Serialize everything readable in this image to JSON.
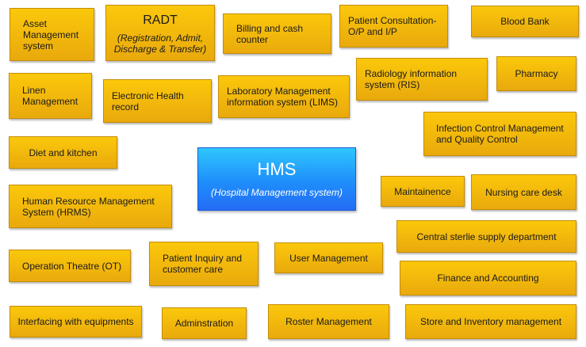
{
  "center": {
    "title": "HMS",
    "subtitle": "(Hospital Management system)"
  },
  "modules": {
    "asset_management": "Asset Management system",
    "radt_title": "RADT",
    "radt_subtitle": "(Registration, Admit, Discharge & Transfer)",
    "billing": "Billing and cash counter",
    "patient_consultation": "Patient Consultation- O/P and I/P",
    "blood_bank": "Blood Bank",
    "linen_management": "Linen Management",
    "ehr": "Electronic Health record",
    "lims": "Laboratory Management information system (LIMS)",
    "ris": "Radiology information system (RIS)",
    "pharmacy": "Pharmacy",
    "infection_control": "Infection Control Management and Quality Control",
    "diet_kitchen": "Diet and kitchen",
    "maintainence": "Maintainence",
    "nursing_care": "Nursing care desk",
    "hrms": "Human Resource Management System (HRMS)",
    "cssd": "Central sterlie supply department",
    "operation_theatre": "Operation Theatre (OT)",
    "patient_inquiry": "Patient Inquiry and customer care",
    "user_management": "User Management",
    "finance": "Finance and Accounting",
    "interfacing": "Interfacing with equipments",
    "adminstration": "Adminstration",
    "roster": "Roster Management",
    "store_inventory": "Store and Inventory management"
  },
  "colors": {
    "module_fill": "#f5b90a",
    "module_border": "#c48d08",
    "center_fill": "#1e8efb",
    "center_text": "#ffffff"
  }
}
